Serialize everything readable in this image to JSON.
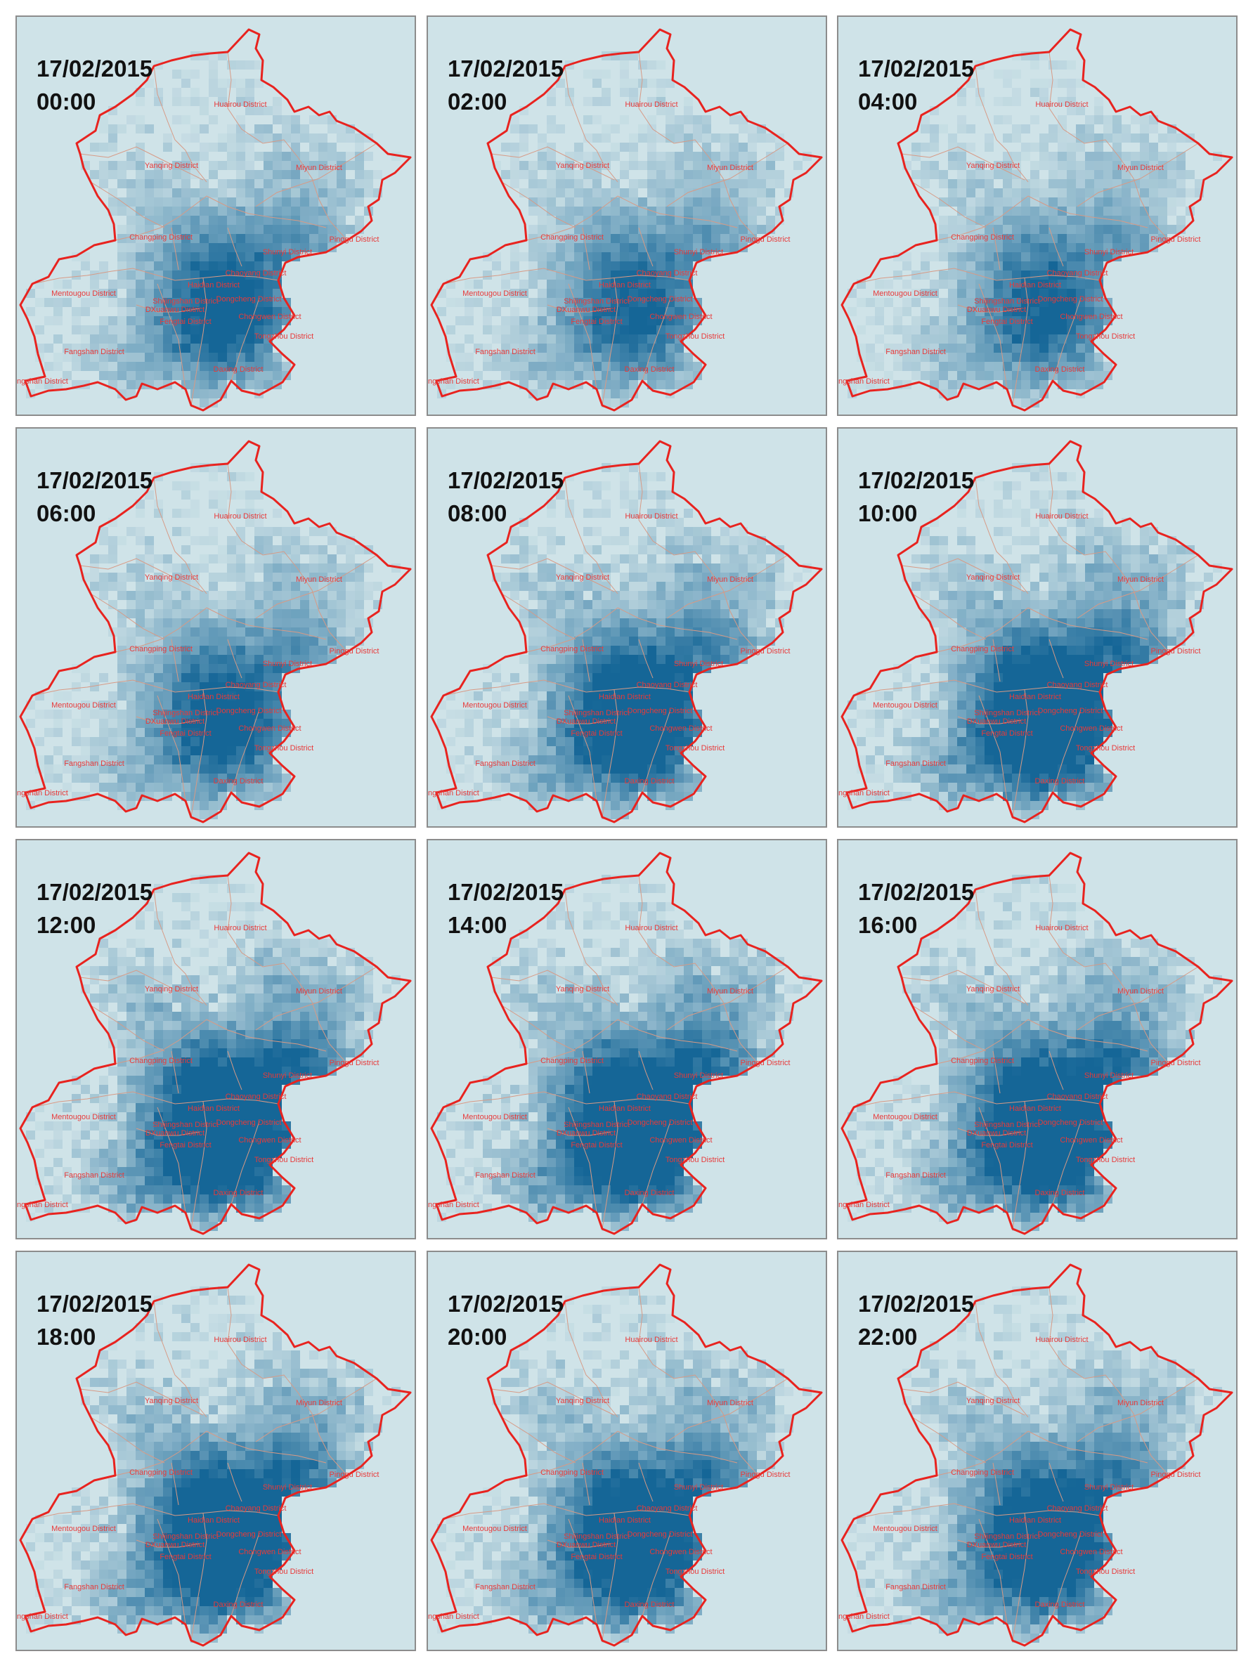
{
  "panels": [
    {
      "date": "17/02/2015",
      "time": "00:00",
      "intensity": 0.55
    },
    {
      "date": "17/02/2015",
      "time": "02:00",
      "intensity": 0.45
    },
    {
      "date": "17/02/2015",
      "time": "04:00",
      "intensity": 0.45
    },
    {
      "date": "17/02/2015",
      "time": "06:00",
      "intensity": 0.55
    },
    {
      "date": "17/02/2015",
      "time": "08:00",
      "intensity": 0.8
    },
    {
      "date": "17/02/2015",
      "time": "10:00",
      "intensity": 0.95
    },
    {
      "date": "17/02/2015",
      "time": "12:00",
      "intensity": 1.0
    },
    {
      "date": "17/02/2015",
      "time": "14:00",
      "intensity": 1.0
    },
    {
      "date": "17/02/2015",
      "time": "16:00",
      "intensity": 0.95
    },
    {
      "date": "17/02/2015",
      "time": "18:00",
      "intensity": 0.95
    },
    {
      "date": "17/02/2015",
      "time": "20:00",
      "intensity": 0.85
    },
    {
      "date": "17/02/2015",
      "time": "22:00",
      "intensity": 0.8
    }
  ],
  "district_labels": [
    "Huairou District",
    "Yanqing District",
    "Miyun District",
    "Changping District",
    "Shunyi District",
    "Pinggu District",
    "Chaoyang District",
    "Haidian District",
    "Mentougou District",
    "Shijingshan District",
    "Dongcheng District",
    "DXuanwu District",
    "Chongwen District",
    "Fengtai District",
    "Tongzhou District",
    "Fangshan District",
    "Daxing District",
    "Fangshan District"
  ],
  "colors": {
    "background": "#cfe3e8",
    "boundary": "#e8231f",
    "district_lines": "#d79a86",
    "label": "#e83a3a",
    "density_cell": "#0b5f92",
    "panel_border": "#8c8c8c"
  }
}
